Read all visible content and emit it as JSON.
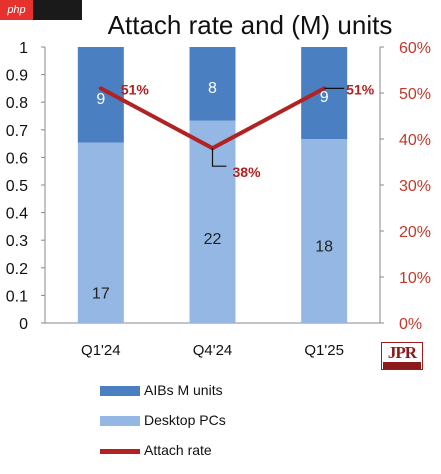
{
  "watermark": {
    "badge": "php"
  },
  "chart_data": {
    "type": "bar",
    "stacked": true,
    "title": "Attach rate and (M) units",
    "categories": [
      "Q1'24",
      "Q4'24",
      "Q1'25"
    ],
    "ylim": [
      0,
      1
    ],
    "y_ticks": [
      "0",
      "0.1",
      "0.2",
      "0.3",
      "0.4",
      "0.5",
      "0.6",
      "0.7",
      "0.8",
      "0.9",
      "1"
    ],
    "y2lim": [
      0,
      0.6
    ],
    "y2_ticks": [
      "0%",
      "10%",
      "20%",
      "30%",
      "40%",
      "50%",
      "60%"
    ],
    "series": [
      {
        "name": "Desktop PCs",
        "type": "bar",
        "color": "#94b8e3",
        "values": [
          17,
          22,
          18
        ],
        "labels": [
          "17",
          "22",
          "18"
        ]
      },
      {
        "name": "AIBs M units",
        "type": "bar",
        "color": "#4a7fc1",
        "values": [
          9,
          8,
          9
        ],
        "labels": [
          "9",
          "8",
          "9"
        ]
      },
      {
        "name": "Attach rate",
        "type": "line",
        "axis": "secondary",
        "color": "#b22222",
        "values": [
          0.51,
          0.38,
          0.51
        ],
        "labels": [
          "51%",
          "38%",
          "51%"
        ]
      }
    ],
    "grid": false,
    "legend_position": "bottom",
    "colors": {
      "axis_right": "#c0392b",
      "line": "#b22222"
    }
  },
  "logo": {
    "text": "JPR"
  }
}
